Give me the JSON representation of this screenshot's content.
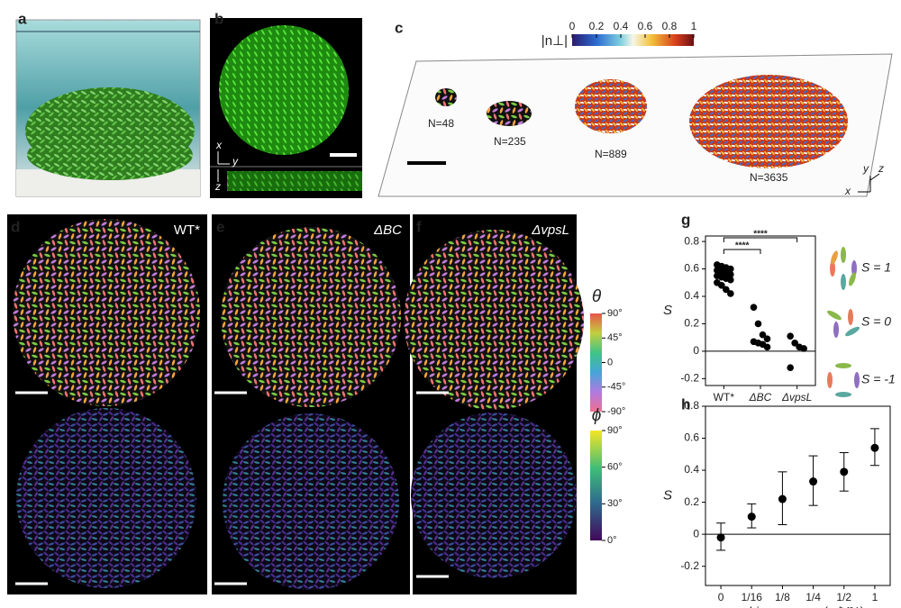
{
  "panel_labels": [
    "a",
    "b",
    "c",
    "d",
    "e",
    "f",
    "g",
    "h"
  ],
  "panel_b": {
    "axes": [
      "x",
      "y",
      "z"
    ]
  },
  "panel_c": {
    "colorbar": {
      "label": "|n⊥|",
      "lim": [
        0,
        1
      ],
      "ticks": [
        0,
        0.2,
        0.4,
        0.6,
        0.8,
        1
      ]
    },
    "clusters": [
      "N=48",
      "N=235",
      "N=889",
      "N=3635"
    ],
    "axes": [
      "y",
      "z",
      "x"
    ]
  },
  "panel_d": {
    "title": "WT*"
  },
  "panel_e": {
    "title": "ΔBC"
  },
  "panel_f": {
    "title": "ΔvpsL"
  },
  "theta_colorbar": {
    "label": "θ",
    "lim": [
      -90,
      90
    ],
    "ticks": [
      {
        "value": 90,
        "label": "90°"
      },
      {
        "value": 45,
        "label": "45°"
      },
      0,
      {
        "value": -45,
        "label": "-45°"
      },
      {
        "value": -90,
        "label": "-90°"
      }
    ]
  },
  "phi_colorbar": {
    "label": "ϕ",
    "lim": [
      0,
      90
    ],
    "ticks": [
      {
        "value": 90,
        "label": "90°"
      },
      {
        "value": 60,
        "label": "60°"
      },
      {
        "value": 30,
        "label": "30°"
      },
      {
        "value": 0,
        "label": "0°"
      }
    ]
  },
  "chart_data": [
    {
      "type": "strip",
      "categories": [
        "WT*",
        "ΔBC",
        "ΔvpsL"
      ],
      "values": [
        [
          0.63,
          0.62,
          0.61,
          0.6,
          0.59,
          0.58,
          0.57,
          0.56,
          0.55,
          0.54,
          0.53,
          0.52,
          0.5,
          0.48,
          0.45,
          0.42
        ],
        [
          0.32,
          0.2,
          0.12,
          0.09,
          0.07,
          0.06,
          0.05,
          0.03
        ],
        [
          0.11,
          0.06,
          0.03,
          0.02,
          -0.12
        ]
      ],
      "ylabel": "S",
      "ylim": [
        -0.25,
        0.84
      ],
      "yticks": [
        -0.2,
        0,
        0.2,
        0.4,
        0.6,
        0.8
      ],
      "significance": [
        "****",
        "****"
      ],
      "schematic_labels": [
        "S = 1",
        "S = 0",
        "S = -1"
      ]
    },
    {
      "type": "errorbar",
      "categories": [
        "0",
        "1/16",
        "1/8",
        "1/4",
        "1/2",
        "1"
      ],
      "values": [
        -0.02,
        0.11,
        0.22,
        0.33,
        0.39,
        0.54
      ],
      "lower": [
        -0.1,
        0.04,
        0.06,
        0.18,
        0.27,
        0.43
      ],
      "upper": [
        0.07,
        0.19,
        0.39,
        0.49,
        0.51,
        0.66
      ],
      "xlabel": "arabinose conc. (w/V%)",
      "ylabel": "S",
      "ylim": [
        -0.32,
        0.8
      ],
      "yticks": [
        -0.2,
        0,
        0.2,
        0.4,
        0.6,
        0.8
      ]
    }
  ]
}
